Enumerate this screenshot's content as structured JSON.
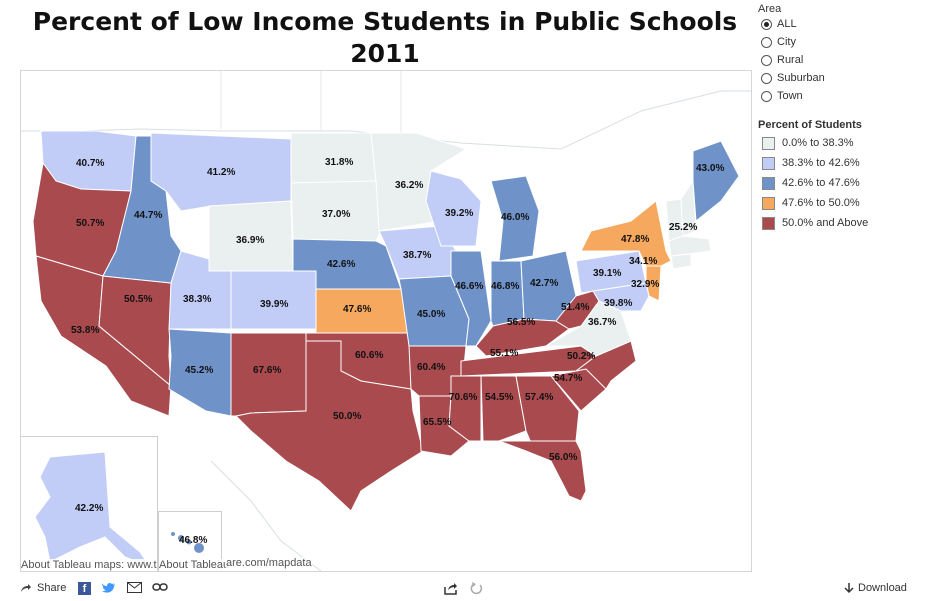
{
  "title": {
    "line1": "Percent of Low Income Students in Public Schools",
    "line2": "2011"
  },
  "area_filter": {
    "label": "Area",
    "options": [
      "ALL",
      "City",
      "Rural",
      "Suburban",
      "Town"
    ],
    "selected": "ALL"
  },
  "legend": {
    "title": "Percent of Students",
    "items": [
      {
        "label": "0.0% to 38.3%",
        "color": "#eaf0ef"
      },
      {
        "label": "38.3% to 42.6%",
        "color": "#c2cdf7"
      },
      {
        "label": "42.6% to 47.6%",
        "color": "#6f93c9"
      },
      {
        "label": "47.6% to 50.0%",
        "color": "#f6a85e"
      },
      {
        "label": "50.0% and Above",
        "color": "#a94a4e"
      }
    ]
  },
  "states": {
    "WA": "40.7%",
    "OR": "50.7%",
    "CA": "53.8%",
    "NV": "50.5%",
    "ID": "44.7%",
    "MT": "41.2%",
    "WY": "36.9%",
    "UT": "38.3%",
    "AZ": "45.2%",
    "CO": "39.9%",
    "NM": "67.6%",
    "ND": "31.8%",
    "SD": "37.0%",
    "NE": "42.6%",
    "KS": "47.6%",
    "OK": "60.6%",
    "TX": "50.0%",
    "MN": "36.2%",
    "IA": "38.7%",
    "MO": "45.0%",
    "AR": "60.4%",
    "LA": "65.5%",
    "WI": "39.2%",
    "IL": "46.6%",
    "MI": "46.0%",
    "IN": "46.8%",
    "OH": "42.7%",
    "KY": "56.5%",
    "TN": "55.1%",
    "MS": "70.6%",
    "AL": "54.5%",
    "GA": "57.4%",
    "FL": "56.0%",
    "SC": "54.7%",
    "NC": "50.2%",
    "VA": "36.7%",
    "WV": "51.4%",
    "PA": "39.1%",
    "NY": "47.8%",
    "ME": "43.0%",
    "VT": "25.2%",
    "MA": "34.1%",
    "NJ": "32.9%",
    "MD": "39.8%",
    "AK": "42.2%",
    "HI": "46.8%"
  },
  "state_colors": {
    "light": "#eaf0ef",
    "lavender": "#c2cdf7",
    "blue": "#6f93c9",
    "orange": "#f6a85e",
    "red": "#a94a4e"
  },
  "credits": {
    "left": "About Tableau maps: www.t",
    "right": "About Tableau",
    "url_tail": "are.com/mapdata"
  },
  "toolbar": {
    "share_label": "Share",
    "download_label": "Download",
    "icons": [
      "share-icon",
      "facebook-icon",
      "twitter-icon",
      "email-icon",
      "link-icon",
      "export-icon",
      "revert-icon",
      "download-icon"
    ]
  }
}
